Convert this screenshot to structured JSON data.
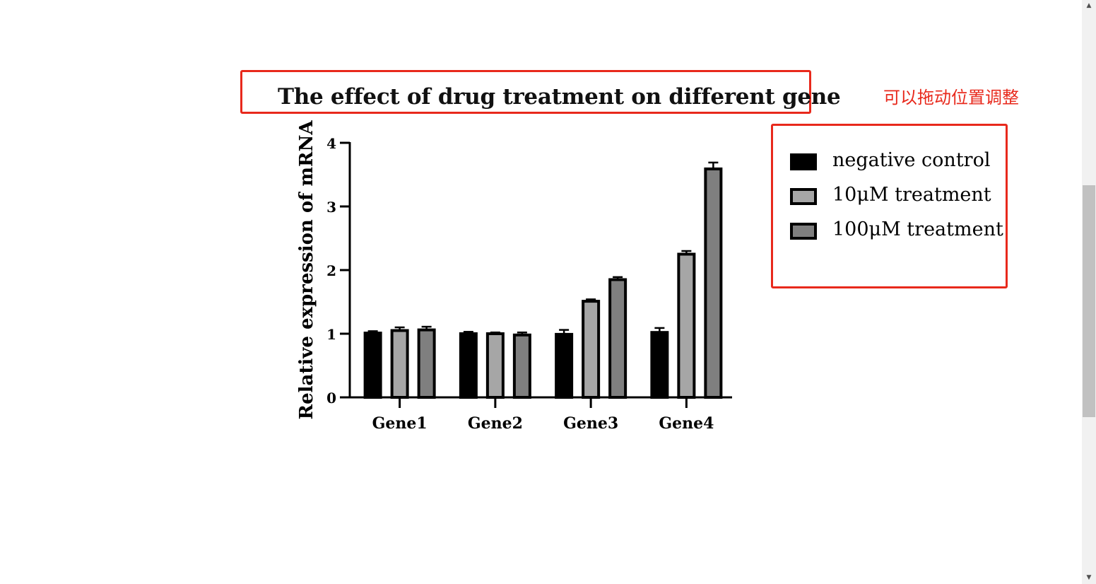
{
  "annotation": {
    "note": "可以拖动位置调整"
  },
  "colors": {
    "accent": "#e8291c",
    "series": [
      "#000000",
      "#a6a6a6",
      "#7f7f7f"
    ]
  },
  "chart_data": {
    "type": "bar",
    "title": "The effect of drug treatment on different gene",
    "xlabel": "",
    "ylabel": "Relative expression of mRNA",
    "ylim": [
      0,
      4
    ],
    "yticks": [
      0,
      1,
      2,
      3,
      4
    ],
    "ytick_labels": [
      "0",
      "1",
      "2",
      "3",
      "4"
    ],
    "categories": [
      "Gene1",
      "Gene2",
      "Gene3",
      "Gene4"
    ],
    "series": [
      {
        "name": "negative control",
        "values": [
          1.01,
          1.0,
          0.99,
          1.02
        ],
        "errors": [
          0.03,
          0.03,
          0.07,
          0.07
        ]
      },
      {
        "name": "10μM treatment",
        "values": [
          1.05,
          1.0,
          1.51,
          2.25
        ],
        "errors": [
          0.05,
          0.02,
          0.03,
          0.05
        ]
      },
      {
        "name": "100μM treatment",
        "values": [
          1.06,
          0.98,
          1.85,
          3.59
        ],
        "errors": [
          0.05,
          0.04,
          0.04,
          0.1
        ]
      }
    ],
    "legend_position": "right",
    "grid": false,
    "error_bars": true
  },
  "scrollbar": {
    "up_icon": "triangle-up-icon",
    "down_icon": "triangle-down-icon"
  }
}
